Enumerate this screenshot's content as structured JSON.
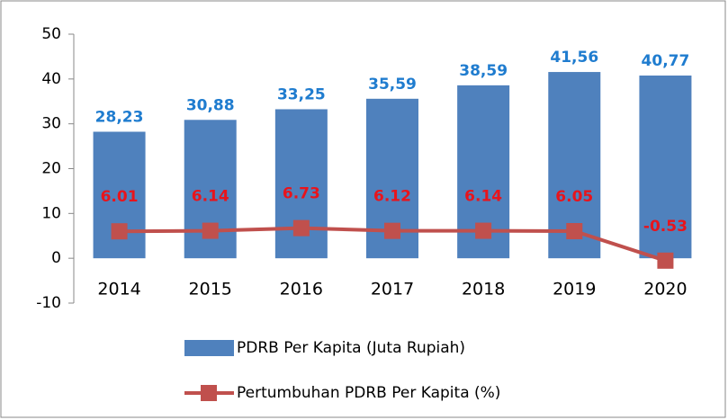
{
  "chart_data": {
    "type": "bar",
    "categories": [
      "2014",
      "2015",
      "2016",
      "2017",
      "2018",
      "2019",
      "2020"
    ],
    "series": [
      {
        "name": "PDRB Per Kapita (Juta Rupiah)",
        "type": "bar",
        "color": "#4f81bd",
        "label_color": "#1f7ccf",
        "values": [
          28.23,
          30.88,
          33.25,
          35.59,
          38.59,
          41.56,
          40.77
        ],
        "value_labels": [
          "28,23",
          "30,88",
          "33,25",
          "35,59",
          "38,59",
          "41,56",
          "40,77"
        ]
      },
      {
        "name": "Pertumbuhan PDRB Per Kapita (%)",
        "type": "line",
        "color": "#c0504d",
        "label_color": "#e8141c",
        "values": [
          6.01,
          6.14,
          6.73,
          6.12,
          6.14,
          6.05,
          -0.53
        ]
      }
    ],
    "ylim": [
      -10,
      50
    ],
    "yticks": [
      -10,
      0,
      10,
      20,
      30,
      40,
      50
    ],
    "grid": false,
    "legend": "bottom"
  }
}
